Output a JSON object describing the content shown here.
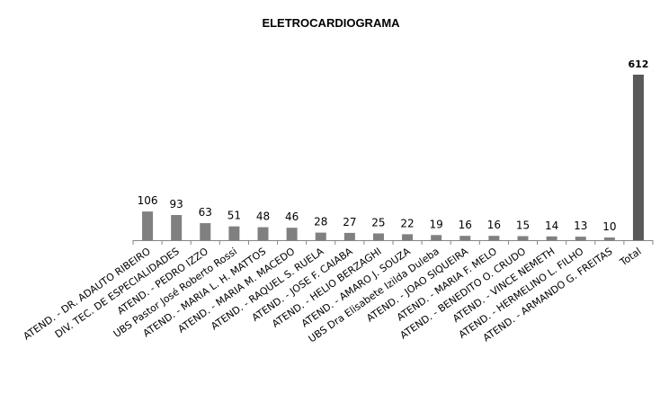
{
  "chart_data": {
    "type": "bar",
    "title": "ELETROCARDIOGRAMA",
    "xlabel": "",
    "ylabel": "",
    "categories": [
      "ATEND. - DR. ADAUTO RIBEIRO",
      "DIV. TEC. DE ESPECIALIDADES",
      "ATEND. - PEDRO IZZO",
      "UBS Pastor José Roberto Rossi",
      "ATEND. - MARIA L. H. MATTOS",
      "ATEND. - MARIA M. MACEDO",
      "ATEND. - RAQUEL S. RUELA",
      "ATEND. - JOSE F. CAIABA",
      "ATEND. - HELIO BERZAGHI",
      "ATEND. - AMARO J. SOUZA",
      "UBS Dra Elisabete Izilda Duleba",
      "ATEND. - JOAO SIQUEIRA",
      "ATEND. - MARIA F. MELO",
      "ATEND. - BENEDITO O. CRUDO",
      "ATEND. - VINCE NEMETH",
      "ATEND. - HERMELINO L. FILHO",
      "ATEND. - ARMANDO G. FREITAS",
      "Total"
    ],
    "values": [
      106,
      93,
      63,
      51,
      48,
      46,
      28,
      27,
      25,
      22,
      19,
      16,
      16,
      15,
      14,
      13,
      10,
      612
    ],
    "data_labels": [
      "106",
      "93",
      "63",
      "51",
      "48",
      "46",
      "28",
      "27",
      "25",
      "22",
      "19",
      "16",
      "16",
      "15",
      "14",
      "13",
      "10",
      "612"
    ],
    "ylim": [
      0,
      612
    ],
    "grid": false,
    "legend": "none",
    "colors": {
      "bar": "#808080",
      "total_bar": "#595959",
      "axis": "#868686"
    }
  }
}
